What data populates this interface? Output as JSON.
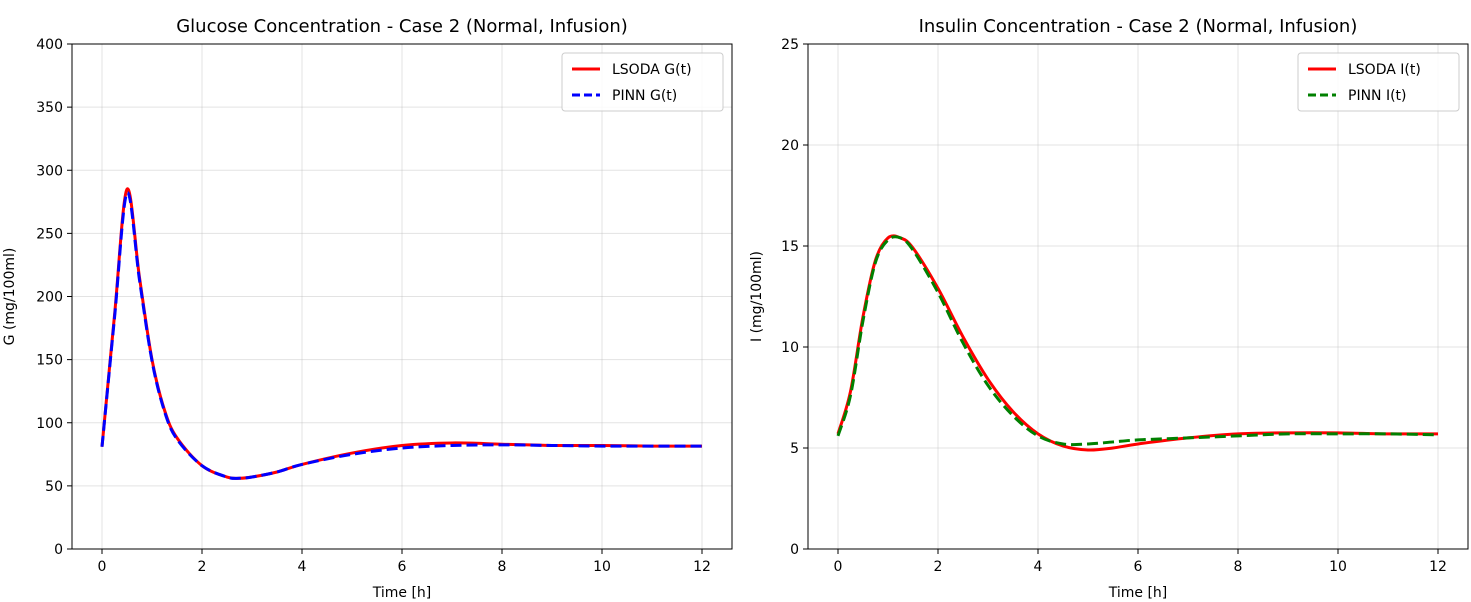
{
  "chart_data": [
    {
      "type": "line",
      "title": "Glucose Concentration - Case 2 (Normal, Infusion)",
      "xlabel": "Time [h]",
      "ylabel": "G (mg/100ml)",
      "xlim": [
        -0.6,
        12.6
      ],
      "ylim": [
        0,
        400
      ],
      "xticks": [
        0,
        2,
        4,
        6,
        8,
        10,
        12
      ],
      "yticks": [
        0,
        50,
        100,
        150,
        200,
        250,
        300,
        350,
        400
      ],
      "grid": true,
      "legend_position": "upper right",
      "series": [
        {
          "name": "LSODA G(t)",
          "color": "#ff0000",
          "style": "solid",
          "x": [
            0,
            0.25,
            0.5,
            0.75,
            1.0,
            1.25,
            1.5,
            2.0,
            2.5,
            2.75,
            3.0,
            3.5,
            4.0,
            5.0,
            6.0,
            7.0,
            8.0,
            9.0,
            10.0,
            11.0,
            12.0
          ],
          "y": [
            81,
            185,
            285,
            215,
            150,
            110,
            88,
            66,
            57,
            56,
            57,
            61,
            67,
            76,
            82,
            84,
            83,
            82,
            82,
            81.5,
            81.5
          ]
        },
        {
          "name": "PINN G(t)",
          "color": "#0000ff",
          "style": "dashed",
          "x": [
            0,
            0.25,
            0.5,
            0.75,
            1.0,
            1.25,
            1.5,
            2.0,
            2.5,
            2.75,
            3.0,
            3.5,
            4.0,
            5.0,
            6.0,
            7.0,
            8.0,
            9.0,
            10.0,
            11.0,
            12.0
          ],
          "y": [
            81,
            183,
            282,
            213,
            149,
            109,
            87,
            66,
            57,
            56,
            57,
            61,
            67,
            75,
            80,
            82,
            82.5,
            82,
            81.5,
            81.5,
            81.5
          ]
        }
      ]
    },
    {
      "type": "line",
      "title": "Insulin Concentration - Case 2 (Normal, Infusion)",
      "xlabel": "Time [h]",
      "ylabel": "I (mg/100ml)",
      "xlim": [
        -0.6,
        12.6
      ],
      "ylim": [
        0,
        25
      ],
      "xticks": [
        0,
        2,
        4,
        6,
        8,
        10,
        12
      ],
      "yticks": [
        0,
        5,
        10,
        15,
        20,
        25
      ],
      "grid": true,
      "legend_position": "upper right",
      "series": [
        {
          "name": "LSODA I(t)",
          "color": "#ff0000",
          "style": "solid",
          "x": [
            0,
            0.25,
            0.5,
            0.75,
            1.0,
            1.25,
            1.5,
            2.0,
            2.5,
            3.0,
            3.5,
            4.0,
            4.5,
            5.0,
            5.5,
            6.0,
            7.0,
            8.0,
            9.0,
            10.0,
            11.0,
            12.0
          ],
          "y": [
            5.7,
            7.8,
            11.5,
            14.3,
            15.4,
            15.4,
            14.9,
            12.9,
            10.5,
            8.4,
            6.8,
            5.7,
            5.1,
            4.9,
            5.0,
            5.2,
            5.5,
            5.7,
            5.75,
            5.75,
            5.7,
            5.7
          ]
        },
        {
          "name": "PINN I(t)",
          "color": "#008000",
          "style": "dashed",
          "x": [
            0,
            0.25,
            0.5,
            0.75,
            1.0,
            1.25,
            1.5,
            2.0,
            2.5,
            3.0,
            3.5,
            4.0,
            4.5,
            5.0,
            5.5,
            6.0,
            7.0,
            8.0,
            9.0,
            10.0,
            11.0,
            12.0
          ],
          "y": [
            5.6,
            7.6,
            11.3,
            14.2,
            15.3,
            15.4,
            14.8,
            12.7,
            10.2,
            8.1,
            6.6,
            5.6,
            5.2,
            5.2,
            5.3,
            5.4,
            5.5,
            5.6,
            5.7,
            5.7,
            5.7,
            5.65
          ]
        }
      ]
    }
  ]
}
